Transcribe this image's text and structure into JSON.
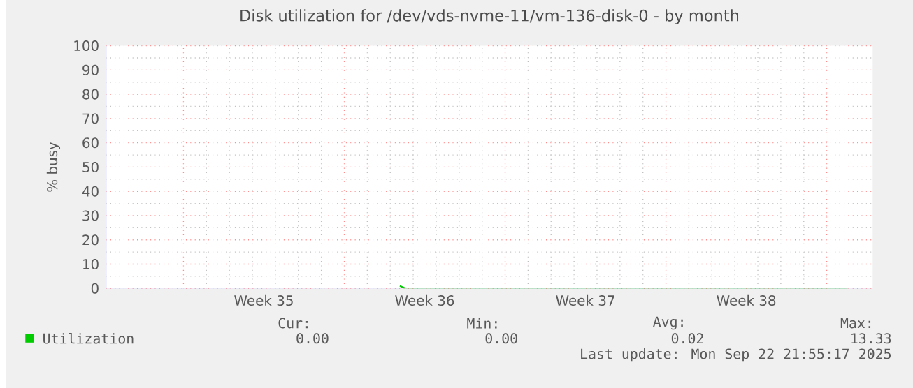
{
  "chart_data": {
    "type": "line",
    "title": "Disk utilization for /dev/vds-nvme-11/vm-136-disk-0 - by month",
    "ylabel": "% busy",
    "x": [
      "2025-09-03T10:00",
      "2025-09-03T16:00",
      "2025-09-04T00:00",
      "2025-09-10T00:00",
      "2025-09-16T00:00",
      "2025-09-22T22:00"
    ],
    "series": [
      {
        "name": "Utilization",
        "color": "#00cc00",
        "values": [
          1,
          0,
          0,
          0,
          0,
          0
        ]
      }
    ],
    "xlim": [
      "2025-08-21T15:00",
      "2025-09-24T00:00"
    ],
    "xticks": [
      {
        "value": "2025-08-25",
        "label": null
      },
      {
        "value": "2025-08-28T12:00",
        "label": "Week 35"
      },
      {
        "value": "2025-09-01",
        "label": null
      },
      {
        "value": "2025-09-04T12:00",
        "label": "Week 36"
      },
      {
        "value": "2025-09-08",
        "label": null
      },
      {
        "value": "2025-09-11T12:00",
        "label": "Week 37"
      },
      {
        "value": "2025-09-15",
        "label": null
      },
      {
        "value": "2025-09-18T12:00",
        "label": "Week 38"
      },
      {
        "value": "2025-09-22",
        "label": null
      }
    ],
    "ylim": [
      0,
      100
    ],
    "yticks": [
      0,
      10,
      20,
      30,
      40,
      50,
      60,
      70,
      80,
      90,
      100
    ],
    "grid": true,
    "legend": "bottom left",
    "annotations": [
      "Cur:",
      "0.00",
      "Min:",
      "0.00",
      "Avg:",
      "0.02",
      "Max:",
      "13.33",
      "Last update: Mon Sep 22 21:55:17 2025"
    ]
  }
}
